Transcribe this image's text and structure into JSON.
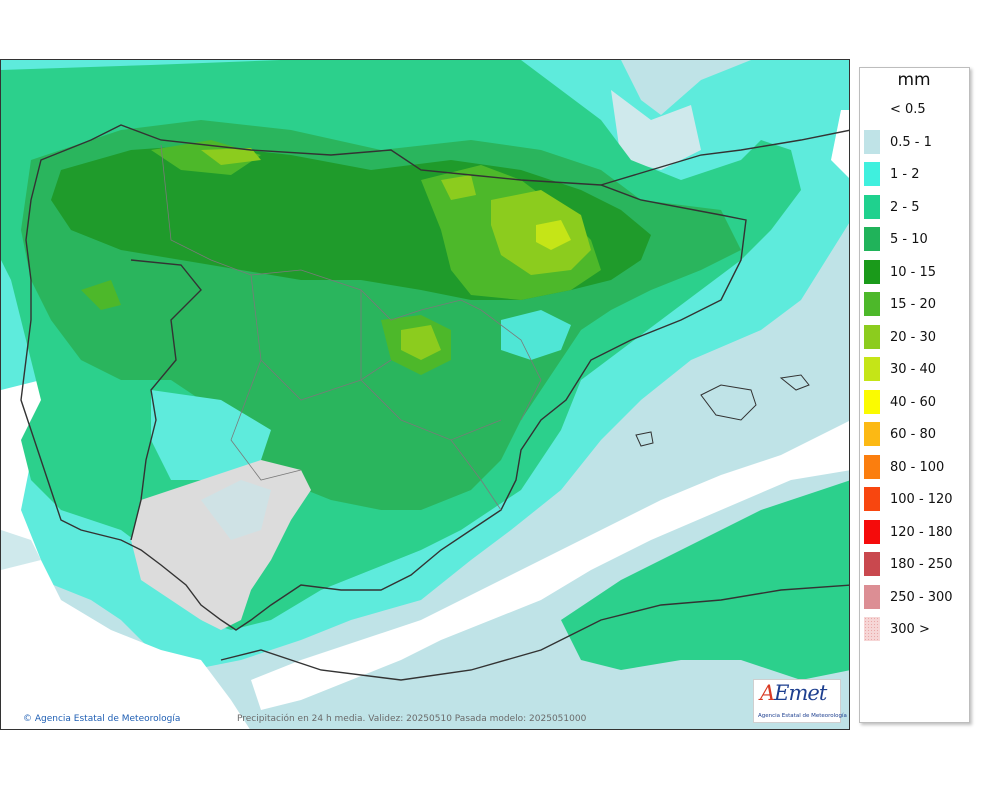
{
  "legend": {
    "unit": "mm",
    "items": [
      {
        "label": "< 0.5",
        "color": "#ffffff"
      },
      {
        "label": "0.5 - 1",
        "color": "#bfe3e7"
      },
      {
        "label": "1 - 2",
        "color": "#3ff0de"
      },
      {
        "label": "2 - 5",
        "color": "#1fd18e"
      },
      {
        "label": "5 - 10",
        "color": "#20b35a"
      },
      {
        "label": "10 - 15",
        "color": "#1a9a1a"
      },
      {
        "label": "15 - 20",
        "color": "#4db82a"
      },
      {
        "label": "20 - 30",
        "color": "#8ccc1e"
      },
      {
        "label": "30 - 40",
        "color": "#c5e517"
      },
      {
        "label": "40 - 60",
        "color": "#fbfb00"
      },
      {
        "label": "60 - 80",
        "color": "#fcb914"
      },
      {
        "label": "80 - 100",
        "color": "#fb7e0e"
      },
      {
        "label": "100 - 120",
        "color": "#f8460f"
      },
      {
        "label": "120 - 180",
        "color": "#f50b0b"
      },
      {
        "label": "180 - 250",
        "color": "#c9484e"
      },
      {
        "label": "250 - 300",
        "color": "#dc8e94"
      },
      {
        "label": "300 >",
        "color": "#f6d6d6"
      }
    ]
  },
  "footer": {
    "copyright": "Agencia Estatal de Meteorología",
    "caption": "Precipitación en 24 h media. Validez: 20250510 Pasada modelo: 2025051000"
  },
  "logo": {
    "wordmark": "AEmet",
    "subtitle": "Agencia Estatal de Meteorología"
  },
  "colors": {
    "land_no_rain": "#dcdcdc",
    "border_line": "#333333",
    "accent_link": "#1f5fb4"
  }
}
